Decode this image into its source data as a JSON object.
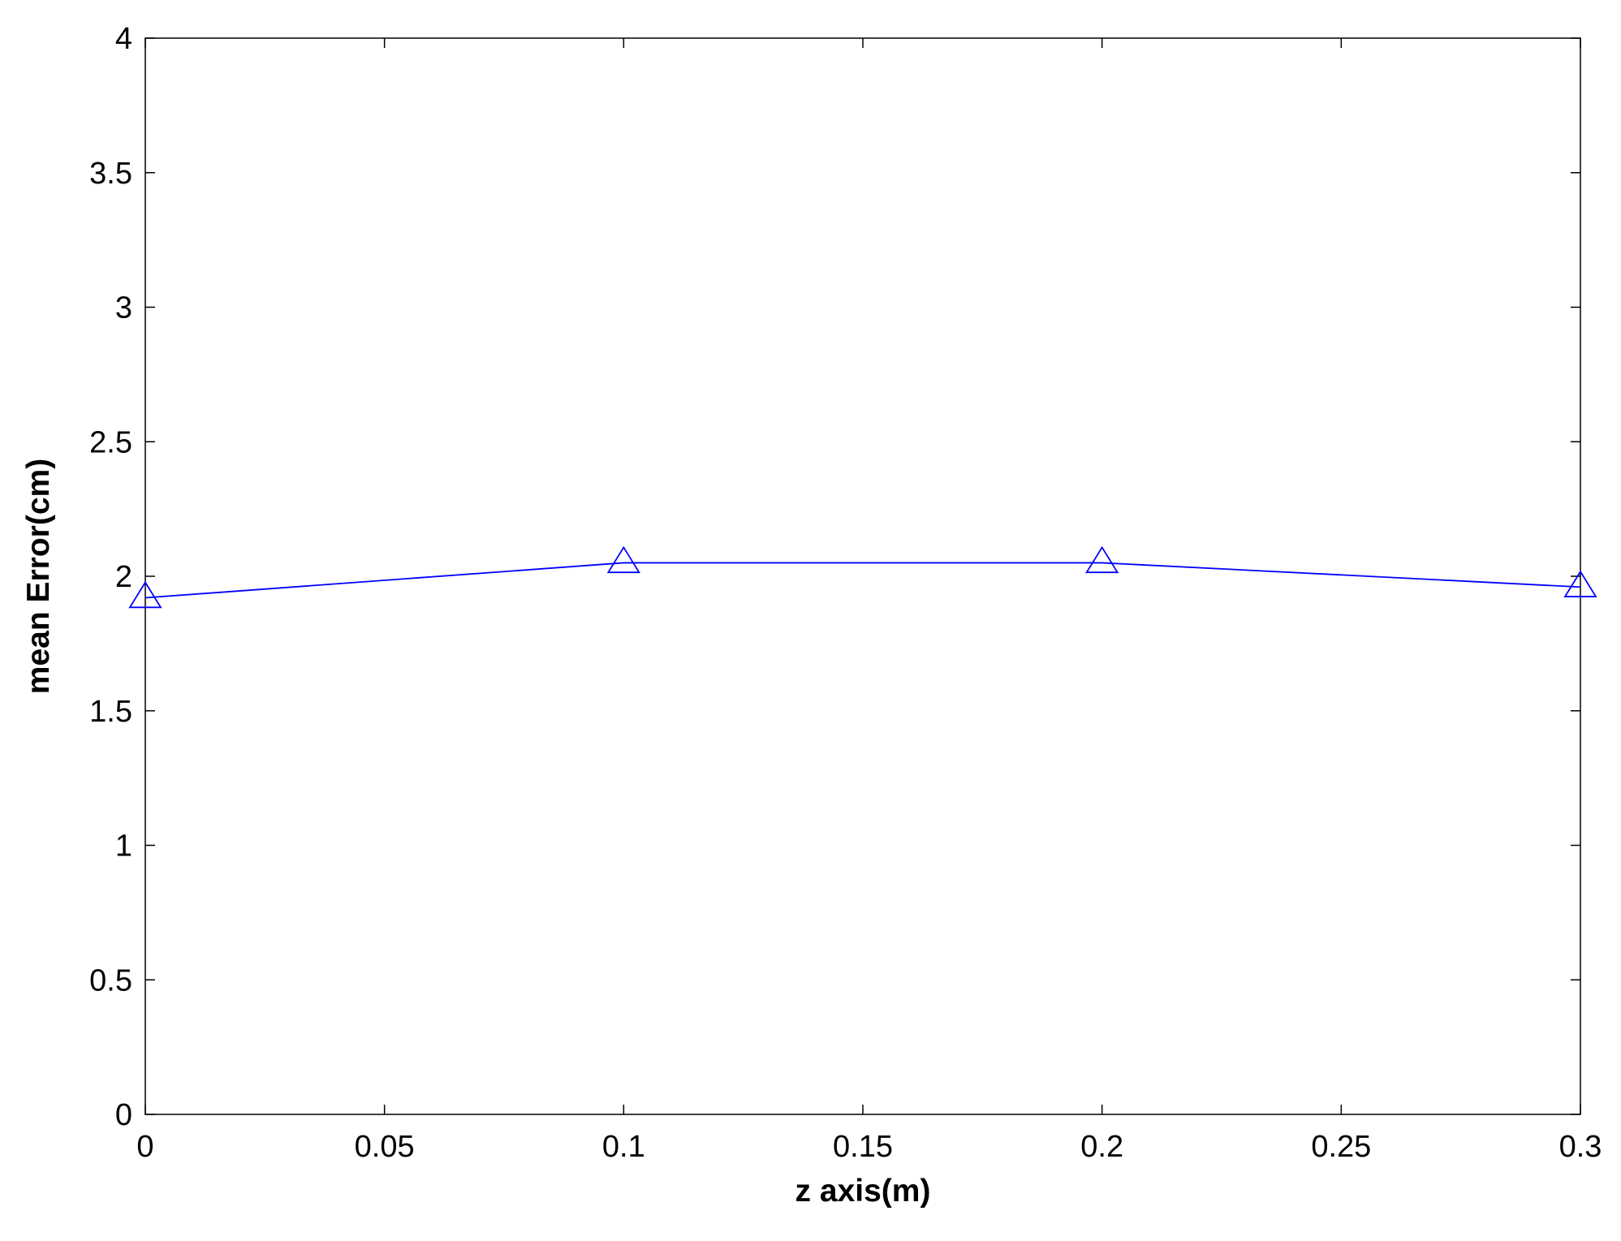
{
  "chart_data": {
    "type": "line",
    "x": [
      0,
      0.1,
      0.2,
      0.3
    ],
    "series": [
      {
        "color": "#0000ff",
        "marker": "triangle",
        "values": [
          1.92,
          2.05,
          2.05,
          1.96
        ]
      }
    ],
    "xlabel": "z axis(m)",
    "ylabel": "mean Error(cm)",
    "xlim": [
      0,
      0.3
    ],
    "xticks": [
      0,
      0.05,
      0.1,
      0.15,
      0.2,
      0.25,
      0.3
    ],
    "ylim": [
      0,
      4
    ],
    "yticks": [
      0,
      0.5,
      1,
      1.5,
      2,
      2.5,
      3,
      3.5,
      4
    ],
    "grid": false
  }
}
